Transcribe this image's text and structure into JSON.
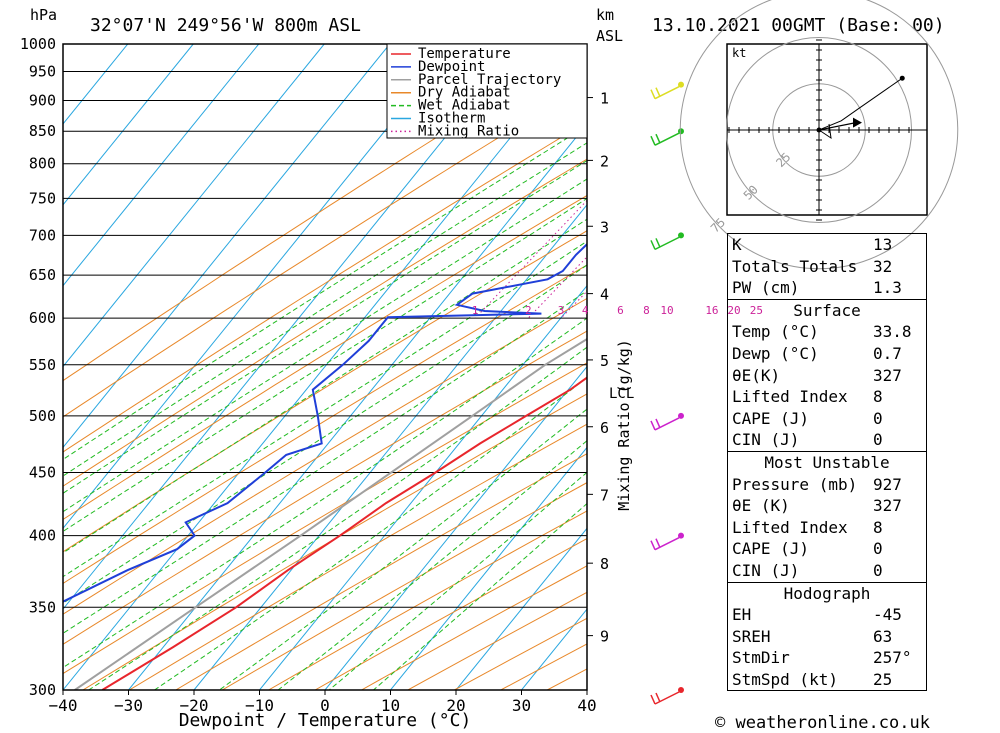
{
  "header": {
    "location": "32°07'N  249°56'W  800m  ASL",
    "datetime": "13.10.2021  00GMT  (Base: 00)",
    "hpa_unit": "hPa",
    "km_unit": "km",
    "asl_unit": "ASL"
  },
  "footer": {
    "credit": "© weatheronline.co.uk"
  },
  "chart_data": {
    "type": "line",
    "subtype": "skew-T log-p sounding",
    "xlabel": "Dewpoint / Temperature (°C)",
    "ylabel": "hPa",
    "mixing_ratio_axis_label": "Mixing Ratio (g/kg)",
    "xlim": [
      -40,
      40
    ],
    "ylim": [
      1000,
      300
    ],
    "x_ticks": [
      -40,
      -30,
      -20,
      -10,
      0,
      10,
      20,
      30,
      40
    ],
    "pressure_levels": [
      300,
      350,
      400,
      450,
      500,
      550,
      600,
      650,
      700,
      750,
      800,
      850,
      900,
      950,
      1000
    ],
    "km_ticks": [
      {
        "km": 1,
        "p": 905
      },
      {
        "km": 2,
        "p": 805
      },
      {
        "km": 3,
        "p": 712
      },
      {
        "km": 4,
        "p": 628
      },
      {
        "km": 5,
        "p": 555
      },
      {
        "km": 6,
        "p": 490
      },
      {
        "km": 7,
        "p": 432
      },
      {
        "km": 8,
        "p": 380
      },
      {
        "km": 9,
        "p": 332
      }
    ],
    "lcl_label": "LCL",
    "lcl_pressure": 545,
    "mixing_ratio_labels": [
      "1",
      "2",
      "3",
      "4",
      "6",
      "8",
      "10",
      "16",
      "20",
      "25"
    ],
    "legend": [
      "Temperature",
      "Dewpoint",
      "Parcel Trajectory",
      "Dry Adiabat",
      "Wet Adiabat",
      "Isotherm",
      "Mixing Ratio"
    ],
    "legend_position": "top-right",
    "series": [
      {
        "name": "Temperature",
        "color": "#e8262c",
        "points": [
          [
            927,
            33.8
          ],
          [
            915,
            31.8
          ],
          [
            900,
            30.5
          ],
          [
            850,
            25.5
          ],
          [
            800,
            21.0
          ],
          [
            750,
            17.0
          ],
          [
            700,
            12.5
          ],
          [
            650,
            8.2
          ],
          [
            625,
            7.3
          ],
          [
            610,
            7.0
          ],
          [
            600,
            7.3
          ],
          [
            575,
            5.3
          ],
          [
            550,
            2.5
          ],
          [
            525,
            0.3
          ],
          [
            500,
            -3.2
          ],
          [
            475,
            -6.8
          ],
          [
            450,
            -10.0
          ],
          [
            425,
            -13.8
          ],
          [
            400,
            -16.8
          ],
          [
            375,
            -20.5
          ],
          [
            350,
            -23.8
          ],
          [
            325,
            -28.5
          ],
          [
            300,
            -34.0
          ]
        ]
      },
      {
        "name": "Dewpoint",
        "color": "#1f3fd8",
        "points": [
          [
            927,
            0.7
          ],
          [
            922,
            -2.2
          ],
          [
            915,
            -3.5
          ],
          [
            900,
            -4.5
          ],
          [
            850,
            -7.0
          ],
          [
            800,
            -9.5
          ],
          [
            750,
            -12.0
          ],
          [
            700,
            -14.8
          ],
          [
            675,
            -15.5
          ],
          [
            655,
            -15.5
          ],
          [
            645,
            -16.8
          ],
          [
            628,
            -26.5
          ],
          [
            615,
            -27.5
          ],
          [
            608,
            -22.5
          ],
          [
            605,
            -13.5
          ],
          [
            601,
            -36.5
          ],
          [
            575,
            -36.5
          ],
          [
            550,
            -37.5
          ],
          [
            525,
            -39.0
          ],
          [
            500,
            -35.0
          ],
          [
            475,
            -31.0
          ],
          [
            465,
            -35.0
          ],
          [
            450,
            -36.0
          ],
          [
            425,
            -38.0
          ],
          [
            410,
            -42.0
          ],
          [
            400,
            -39.0
          ],
          [
            390,
            -40.0
          ],
          [
            375,
            -45.0
          ],
          [
            350,
            -52.0
          ],
          [
            325,
            -57.0
          ],
          [
            300,
            -58.0
          ]
        ]
      },
      {
        "name": "Parcel Trajectory",
        "color": "#a0a0a0",
        "points": [
          [
            927,
            33.8
          ],
          [
            900,
            31.2
          ],
          [
            850,
            26.3
          ],
          [
            800,
            21.2
          ],
          [
            750,
            16.0
          ],
          [
            700,
            10.6
          ],
          [
            650,
            5.0
          ],
          [
            600,
            -0.8
          ],
          [
            550,
            -6.6
          ],
          [
            500,
            -11.4
          ],
          [
            450,
            -16.8
          ],
          [
            400,
            -22.8
          ],
          [
            350,
            -30.0
          ],
          [
            300,
            -38.2
          ]
        ]
      }
    ]
  },
  "wind_profile": {
    "levels": [
      {
        "p": 300,
        "color": "#e8262c"
      },
      {
        "p": 400,
        "color": "#cc22cc"
      },
      {
        "p": 500,
        "color": "#cc22cc"
      },
      {
        "p": 700,
        "color": "#22bb22"
      },
      {
        "p": 850,
        "color": "#22bb22"
      },
      {
        "p": 927,
        "color": "#dddd22"
      }
    ]
  },
  "hodograph": {
    "unit_label": "kt",
    "ring_labels": [
      "25",
      "50",
      "75"
    ],
    "trace": [
      [
        0,
        0
      ],
      [
        12,
        5
      ],
      [
        22,
        12
      ],
      [
        45,
        28
      ]
    ],
    "storm_motion": [
      20,
      4
    ]
  },
  "indices": {
    "k_label": "K",
    "k_value": "13",
    "tt_label": "Totals Totals",
    "tt_value": "32",
    "pw_label": "PW (cm)",
    "pw_value": "1.3",
    "surface_title": "Surface",
    "s_temp_label": "Temp (°C)",
    "s_temp_value": "33.8",
    "s_dewp_label": "Dewp (°C)",
    "s_dewp_value": "0.7",
    "s_theta_label": "θE(K)",
    "s_theta_value": "327",
    "s_li_label": "Lifted Index",
    "s_li_value": "8",
    "s_cape_label": "CAPE (J)",
    "s_cape_value": "0",
    "s_cin_label": "CIN (J)",
    "s_cin_value": "0",
    "mu_title": "Most Unstable",
    "mu_pres_label": "Pressure (mb)",
    "mu_pres_value": "927",
    "mu_theta_label": "θE (K)",
    "mu_theta_value": "327",
    "mu_li_label": "Lifted Index",
    "mu_li_value": "8",
    "mu_cape_label": "CAPE (J)",
    "mu_cape_value": "0",
    "mu_cin_label": "CIN (J)",
    "mu_cin_value": "0",
    "hodo_title": "Hodograph",
    "eh_label": "EH",
    "eh_value": "-45",
    "sreh_label": "SREH",
    "sreh_value": "63",
    "stmdir_label": "StmDir",
    "stmdir_value": "257°",
    "stmspd_label": "StmSpd (kt)",
    "stmspd_value": "25"
  }
}
